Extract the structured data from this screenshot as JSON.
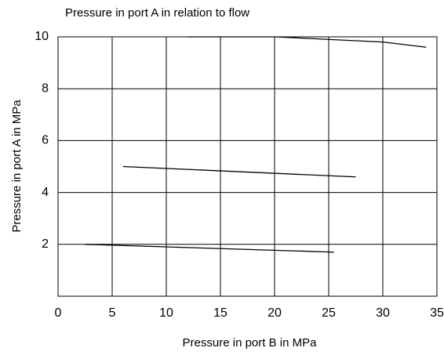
{
  "chart_data": {
    "type": "line",
    "title": "Pressure in port A in relation to flow",
    "x_label": "Pressure in port B in MPa",
    "y_label": "Pressure in port A  in MPa",
    "series": [
      {
        "color": "#000000",
        "x": [
          12,
          20,
          30,
          34
        ],
        "values": [
          10,
          10,
          9.8,
          9.6
        ]
      },
      {
        "color": "#000000",
        "x": [
          6,
          27.5
        ],
        "values": [
          5,
          4.6
        ]
      },
      {
        "color": "#000000",
        "x": [
          2.5,
          25.5
        ],
        "values": [
          2,
          1.7
        ]
      }
    ],
    "xlim": [
      0,
      35
    ],
    "xticks": [
      0,
      5,
      10,
      15,
      20,
      25,
      30,
      35
    ],
    "ylim": [
      0,
      10
    ],
    "yticks": [
      2,
      4,
      6,
      8,
      10
    ],
    "grid": true
  }
}
